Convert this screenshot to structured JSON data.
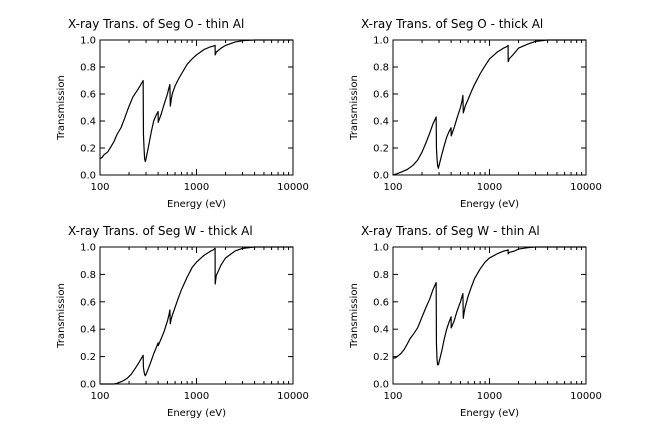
{
  "figure": {
    "ticks": {
      "x": [
        {
          "v": 100,
          "label": "100"
        },
        {
          "v": 1000,
          "label": "1000"
        },
        {
          "v": 10000,
          "label": "10000"
        }
      ],
      "y": [
        {
          "v": 0.0,
          "label": "0.0"
        },
        {
          "v": 0.2,
          "label": "0.2"
        },
        {
          "v": 0.4,
          "label": "0.4"
        },
        {
          "v": 0.6,
          "label": "0.6"
        },
        {
          "v": 0.8,
          "label": "0.8"
        },
        {
          "v": 1.0,
          "label": "1.0"
        }
      ]
    }
  },
  "chart_data": [
    {
      "type": "line",
      "title": "X-ray Trans. of Seg O - thin Al",
      "xlabel": "Energy (eV)",
      "ylabel": "Transmission",
      "xscale": "log",
      "xlim": [
        100,
        10000
      ],
      "ylim": [
        0.0,
        1.0
      ],
      "series": [
        {
          "name": "transmission",
          "x": [
            100,
            105,
            110,
            120,
            130,
            140,
            150,
            165,
            180,
            200,
            220,
            240,
            260,
            280,
            282,
            286,
            290,
            295,
            300,
            320,
            340,
            360,
            380,
            400,
            401,
            430,
            460,
            500,
            520,
            530,
            535,
            545,
            560,
            600,
            650,
            700,
            800,
            900,
            1000,
            1200,
            1400,
            1500,
            1559,
            1561,
            1600,
            1800,
            2000,
            2500,
            3000,
            4000,
            5000,
            7000,
            10000
          ],
          "y": [
            0.12,
            0.13,
            0.15,
            0.17,
            0.21,
            0.25,
            0.3,
            0.35,
            0.42,
            0.51,
            0.58,
            0.62,
            0.66,
            0.7,
            0.3,
            0.2,
            0.12,
            0.1,
            0.12,
            0.22,
            0.32,
            0.4,
            0.44,
            0.47,
            0.39,
            0.45,
            0.52,
            0.6,
            0.65,
            0.67,
            0.51,
            0.55,
            0.6,
            0.66,
            0.71,
            0.75,
            0.82,
            0.86,
            0.89,
            0.93,
            0.95,
            0.955,
            0.96,
            0.89,
            0.91,
            0.94,
            0.96,
            0.985,
            0.995,
            1.0,
            1.0,
            1.0,
            1.0
          ]
        }
      ]
    },
    {
      "type": "line",
      "title": "X-ray Trans. of Seg O - thick Al",
      "xlabel": "Energy (eV)",
      "ylabel": "Transmission",
      "xscale": "log",
      "xlim": [
        100,
        10000
      ],
      "ylim": [
        0.0,
        1.0
      ],
      "series": [
        {
          "name": "transmission",
          "x": [
            100,
            110,
            120,
            140,
            160,
            180,
            200,
            220,
            240,
            260,
            280,
            282,
            286,
            290,
            295,
            300,
            320,
            340,
            360,
            380,
            400,
            401,
            430,
            460,
            500,
            520,
            530,
            535,
            545,
            560,
            600,
            650,
            700,
            800,
            900,
            1000,
            1200,
            1400,
            1500,
            1559,
            1561,
            1600,
            1800,
            2000,
            2500,
            3000,
            4000,
            5000,
            7000,
            10000
          ],
          "y": [
            0.0,
            0.01,
            0.02,
            0.04,
            0.07,
            0.11,
            0.17,
            0.24,
            0.31,
            0.38,
            0.43,
            0.2,
            0.12,
            0.07,
            0.05,
            0.07,
            0.15,
            0.22,
            0.28,
            0.32,
            0.35,
            0.29,
            0.35,
            0.42,
            0.5,
            0.55,
            0.59,
            0.46,
            0.48,
            0.51,
            0.56,
            0.62,
            0.67,
            0.75,
            0.81,
            0.86,
            0.91,
            0.94,
            0.95,
            0.96,
            0.84,
            0.86,
            0.9,
            0.94,
            0.97,
            0.99,
            1.0,
            1.0,
            1.0,
            1.0
          ]
        }
      ]
    },
    {
      "type": "line",
      "title": "X-ray Trans. of Seg W - thick Al",
      "xlabel": "Energy (eV)",
      "ylabel": "Transmission",
      "xscale": "log",
      "xlim": [
        100,
        10000
      ],
      "ylim": [
        0.0,
        1.0
      ],
      "series": [
        {
          "name": "transmission",
          "x": [
            100,
            140,
            150,
            170,
            190,
            210,
            230,
            250,
            270,
            280,
            282,
            286,
            290,
            295,
            300,
            320,
            340,
            360,
            380,
            400,
            401,
            430,
            460,
            500,
            520,
            530,
            535,
            545,
            560,
            600,
            650,
            700,
            800,
            900,
            1000,
            1200,
            1400,
            1500,
            1559,
            1561,
            1600,
            1800,
            2000,
            2500,
            3000,
            4000,
            5000,
            7000,
            10000
          ],
          "y": [
            0.0,
            0.0,
            0.005,
            0.02,
            0.04,
            0.07,
            0.11,
            0.15,
            0.19,
            0.21,
            0.12,
            0.09,
            0.07,
            0.06,
            0.07,
            0.12,
            0.17,
            0.22,
            0.26,
            0.3,
            0.28,
            0.33,
            0.38,
            0.46,
            0.51,
            0.54,
            0.44,
            0.47,
            0.5,
            0.56,
            0.63,
            0.69,
            0.78,
            0.85,
            0.89,
            0.94,
            0.97,
            0.98,
            0.99,
            0.73,
            0.79,
            0.87,
            0.92,
            0.97,
            0.99,
            1.0,
            1.0,
            1.0,
            1.0
          ]
        }
      ]
    },
    {
      "type": "line",
      "title": "X-ray Trans. of Seg W - thin Al",
      "xlabel": "Energy (eV)",
      "ylabel": "Transmission",
      "xscale": "log",
      "xlim": [
        100,
        10000
      ],
      "ylim": [
        0.0,
        1.0
      ],
      "series": [
        {
          "name": "transmission",
          "x": [
            100,
            105,
            110,
            120,
            130,
            140,
            150,
            165,
            180,
            200,
            220,
            240,
            260,
            280,
            282,
            286,
            290,
            295,
            300,
            320,
            340,
            360,
            380,
            400,
            401,
            430,
            460,
            500,
            520,
            530,
            535,
            545,
            560,
            600,
            650,
            700,
            800,
            900,
            1000,
            1200,
            1400,
            1500,
            1559,
            1561,
            1600,
            1800,
            2000,
            2500,
            3000,
            4000,
            5000,
            7000,
            10000
          ],
          "y": [
            0.19,
            0.19,
            0.2,
            0.22,
            0.25,
            0.29,
            0.33,
            0.37,
            0.41,
            0.49,
            0.56,
            0.62,
            0.69,
            0.74,
            0.29,
            0.18,
            0.14,
            0.14,
            0.16,
            0.24,
            0.33,
            0.4,
            0.45,
            0.49,
            0.41,
            0.46,
            0.53,
            0.6,
            0.64,
            0.66,
            0.48,
            0.52,
            0.56,
            0.64,
            0.71,
            0.77,
            0.84,
            0.89,
            0.92,
            0.95,
            0.97,
            0.975,
            0.98,
            0.95,
            0.96,
            0.97,
            0.985,
            0.995,
            1.0,
            1.0,
            1.0,
            1.0,
            1.0
          ]
        }
      ]
    }
  ]
}
